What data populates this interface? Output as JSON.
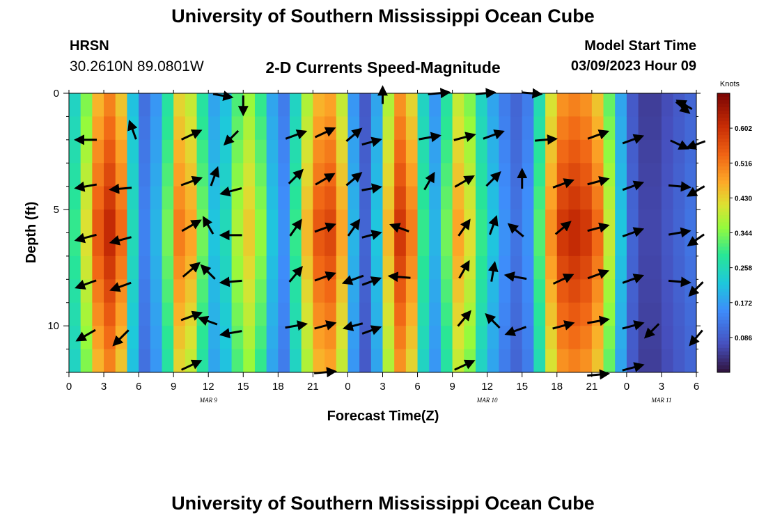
{
  "header": {
    "title": "University of Southern Mississippi Ocean Cube",
    "station": "HRSN",
    "coordinates": "30.2610N  89.0801W",
    "product": "2-D Currents Speed-Magnitude",
    "model_start_label": "Model Start Time",
    "model_start_value": "03/09/2023 Hour 09"
  },
  "footer": {
    "title": "University of Southern Mississippi Ocean Cube"
  },
  "chart_data": {
    "type": "heatmap",
    "title": "2-D Currents Speed-Magnitude",
    "xlabel": "Forecast Time(Z)",
    "ylabel": "Depth (ft)",
    "x_range_hours": [
      0,
      54
    ],
    "y_range_ft": [
      0,
      12
    ],
    "x_tick_labels": [
      "0",
      "3",
      "6",
      "9",
      "12",
      "15",
      "18",
      "21",
      "0",
      "3",
      "6",
      "9",
      "12",
      "15",
      "18",
      "21",
      "0",
      "3",
      "6"
    ],
    "y_tick_labels": [
      "0",
      "5",
      "10"
    ],
    "y_tick_values": [
      0,
      5,
      10
    ],
    "date_labels": [
      {
        "label": "MAR 9",
        "hour": 12
      },
      {
        "label": "MAR 10",
        "hour": 36
      },
      {
        "label": "MAR 11",
        "hour": 51
      }
    ],
    "colorbar": {
      "label": "Knots",
      "range": [
        0,
        0.688
      ],
      "ticks": [
        "0.602",
        "0.516",
        "0.430",
        "0.344",
        "0.258",
        "0.172",
        "0.086"
      ],
      "tick_values": [
        0.602,
        0.516,
        0.43,
        0.344,
        0.258,
        0.172,
        0.086
      ]
    },
    "speed_profile_by_hour": [
      {
        "hour": 0,
        "speed": 0.3
      },
      {
        "hour": 1,
        "speed": 0.42
      },
      {
        "hour": 2,
        "speed": 0.56
      },
      {
        "hour": 3,
        "speed": 0.62
      },
      {
        "hour": 4,
        "speed": 0.54
      },
      {
        "hour": 5,
        "speed": 0.26
      },
      {
        "hour": 6,
        "speed": 0.14
      },
      {
        "hour": 7,
        "speed": 0.2
      },
      {
        "hour": 8,
        "speed": 0.34
      },
      {
        "hour": 9,
        "speed": 0.52
      },
      {
        "hour": 10,
        "speed": 0.48
      },
      {
        "hour": 11,
        "speed": 0.34
      },
      {
        "hour": 12,
        "speed": 0.22
      },
      {
        "hour": 13,
        "speed": 0.26
      },
      {
        "hour": 14,
        "speed": 0.38
      },
      {
        "hour": 15,
        "speed": 0.44
      },
      {
        "hour": 16,
        "speed": 0.36
      },
      {
        "hour": 17,
        "speed": 0.22
      },
      {
        "hour": 18,
        "speed": 0.16
      },
      {
        "hour": 19,
        "speed": 0.3
      },
      {
        "hour": 20,
        "speed": 0.46
      },
      {
        "hour": 21,
        "speed": 0.56
      },
      {
        "hour": 22,
        "speed": 0.58
      },
      {
        "hour": 23,
        "speed": 0.48
      },
      {
        "hour": 24,
        "speed": 0.2
      },
      {
        "hour": 25,
        "speed": 0.1
      },
      {
        "hour": 26,
        "speed": 0.22
      },
      {
        "hour": 27,
        "speed": 0.46
      },
      {
        "hour": 28,
        "speed": 0.6
      },
      {
        "hour": 29,
        "speed": 0.52
      },
      {
        "hour": 30,
        "speed": 0.3
      },
      {
        "hour": 31,
        "speed": 0.2
      },
      {
        "hour": 32,
        "speed": 0.34
      },
      {
        "hour": 33,
        "speed": 0.48
      },
      {
        "hour": 34,
        "speed": 0.42
      },
      {
        "hour": 35,
        "speed": 0.3
      },
      {
        "hour": 36,
        "speed": 0.22
      },
      {
        "hour": 37,
        "speed": 0.16
      },
      {
        "hour": 38,
        "speed": 0.12
      },
      {
        "hour": 39,
        "speed": 0.16
      },
      {
        "hour": 40,
        "speed": 0.32
      },
      {
        "hour": 41,
        "speed": 0.5
      },
      {
        "hour": 42,
        "speed": 0.6
      },
      {
        "hour": 43,
        "speed": 0.62
      },
      {
        "hour": 44,
        "speed": 0.6
      },
      {
        "hour": 45,
        "speed": 0.54
      },
      {
        "hour": 46,
        "speed": 0.4
      },
      {
        "hour": 47,
        "speed": 0.22
      },
      {
        "hour": 48,
        "speed": 0.1
      },
      {
        "hour": 49,
        "speed": 0.06
      },
      {
        "hour": 50,
        "speed": 0.06
      },
      {
        "hour": 51,
        "speed": 0.08
      },
      {
        "hour": 52,
        "speed": 0.1
      },
      {
        "hour": 53,
        "speed": 0.12
      },
      {
        "hour": 54,
        "speed": 0.14
      }
    ],
    "vectors": [
      {
        "hour": 1.5,
        "depth": 2.0,
        "angle_deg": 180,
        "length": 1.0
      },
      {
        "hour": 1.5,
        "depth": 4.0,
        "angle_deg": 190,
        "length": 1.0
      },
      {
        "hour": 1.5,
        "depth": 6.2,
        "angle_deg": 195,
        "length": 1.0
      },
      {
        "hour": 1.5,
        "depth": 8.2,
        "angle_deg": 200,
        "length": 1.0
      },
      {
        "hour": 1.5,
        "depth": 10.4,
        "angle_deg": 210,
        "length": 1.0
      },
      {
        "hour": 4.5,
        "depth": 4.1,
        "angle_deg": 185,
        "length": 1.0
      },
      {
        "hour": 4.5,
        "depth": 6.3,
        "angle_deg": 195,
        "length": 1.0
      },
      {
        "hour": 4.5,
        "depth": 8.3,
        "angle_deg": 200,
        "length": 1.0
      },
      {
        "hour": 4.5,
        "depth": 10.5,
        "angle_deg": 225,
        "length": 1.0
      },
      {
        "hour": 5.5,
        "depth": 1.6,
        "angle_deg": 110,
        "length": 0.9
      },
      {
        "hour": 10.5,
        "depth": 1.8,
        "angle_deg": 25,
        "length": 1.0
      },
      {
        "hour": 10.5,
        "depth": 3.8,
        "angle_deg": 20,
        "length": 1.0
      },
      {
        "hour": 10.5,
        "depth": 5.7,
        "angle_deg": 30,
        "length": 1.0
      },
      {
        "hour": 10.5,
        "depth": 7.6,
        "angle_deg": 40,
        "length": 1.0
      },
      {
        "hour": 10.5,
        "depth": 9.6,
        "angle_deg": 20,
        "length": 1.0
      },
      {
        "hour": 10.5,
        "depth": 11.7,
        "angle_deg": 25,
        "length": 1.0
      },
      {
        "hour": 12.0,
        "depth": 5.7,
        "angle_deg": 120,
        "length": 0.9
      },
      {
        "hour": 12.0,
        "depth": 7.7,
        "angle_deg": 135,
        "length": 0.9
      },
      {
        "hour": 12.0,
        "depth": 9.8,
        "angle_deg": 160,
        "length": 0.9
      },
      {
        "hour": 12.5,
        "depth": 3.6,
        "angle_deg": 70,
        "length": 0.9
      },
      {
        "hour": 13.2,
        "depth": 0.1,
        "angle_deg": -10,
        "length": 0.9
      },
      {
        "hour": 14.0,
        "depth": 1.9,
        "angle_deg": 225,
        "length": 0.9
      },
      {
        "hour": 14.0,
        "depth": 4.2,
        "angle_deg": 195,
        "length": 1.0
      },
      {
        "hour": 14.0,
        "depth": 6.1,
        "angle_deg": 180,
        "length": 1.0
      },
      {
        "hour": 14.0,
        "depth": 8.1,
        "angle_deg": 185,
        "length": 1.0
      },
      {
        "hour": 14.0,
        "depth": 10.3,
        "angle_deg": 190,
        "length": 1.0
      },
      {
        "hour": 15.0,
        "depth": 0.5,
        "angle_deg": 270,
        "length": 0.9
      },
      {
        "hour": 19.5,
        "depth": 1.8,
        "angle_deg": 20,
        "length": 1.0
      },
      {
        "hour": 19.5,
        "depth": 3.6,
        "angle_deg": 45,
        "length": 0.9
      },
      {
        "hour": 19.5,
        "depth": 5.8,
        "angle_deg": 55,
        "length": 0.9
      },
      {
        "hour": 19.5,
        "depth": 7.8,
        "angle_deg": 50,
        "length": 0.9
      },
      {
        "hour": 19.5,
        "depth": 10.0,
        "angle_deg": 10,
        "length": 1.0
      },
      {
        "hour": 22.0,
        "depth": 1.7,
        "angle_deg": 25,
        "length": 1.0
      },
      {
        "hour": 22.0,
        "depth": 3.7,
        "angle_deg": 30,
        "length": 1.0
      },
      {
        "hour": 22.0,
        "depth": 5.8,
        "angle_deg": 20,
        "length": 1.0
      },
      {
        "hour": 22.0,
        "depth": 7.9,
        "angle_deg": 20,
        "length": 1.0
      },
      {
        "hour": 22.0,
        "depth": 10.0,
        "angle_deg": 15,
        "length": 1.0
      },
      {
        "hour": 22.0,
        "depth": 12.0,
        "angle_deg": 5,
        "length": 1.0
      },
      {
        "hour": 24.5,
        "depth": 1.8,
        "angle_deg": 40,
        "length": 0.9
      },
      {
        "hour": 24.5,
        "depth": 3.7,
        "angle_deg": 40,
        "length": 0.9
      },
      {
        "hour": 24.5,
        "depth": 5.8,
        "angle_deg": 55,
        "length": 0.9
      },
      {
        "hour": 24.5,
        "depth": 8.0,
        "angle_deg": 200,
        "length": 1.0
      },
      {
        "hour": 24.5,
        "depth": 10.0,
        "angle_deg": 195,
        "length": 0.9
      },
      {
        "hour": 26.0,
        "depth": 2.1,
        "angle_deg": 15,
        "length": 0.9
      },
      {
        "hour": 26.0,
        "depth": 4.1,
        "angle_deg": 10,
        "length": 0.9
      },
      {
        "hour": 26.0,
        "depth": 6.1,
        "angle_deg": 15,
        "length": 0.9
      },
      {
        "hour": 26.0,
        "depth": 8.1,
        "angle_deg": 20,
        "length": 0.9
      },
      {
        "hour": 26.0,
        "depth": 10.2,
        "angle_deg": 20,
        "length": 0.9
      },
      {
        "hour": 27.0,
        "depth": 0.1,
        "angle_deg": 90,
        "length": 0.8
      },
      {
        "hour": 28.5,
        "depth": 5.8,
        "angle_deg": 160,
        "length": 0.9
      },
      {
        "hour": 28.5,
        "depth": 7.9,
        "angle_deg": 175,
        "length": 1.0
      },
      {
        "hour": 31.0,
        "depth": 1.9,
        "angle_deg": 10,
        "length": 1.0
      },
      {
        "hour": 31.0,
        "depth": 3.8,
        "angle_deg": 60,
        "length": 0.9
      },
      {
        "hour": 31.8,
        "depth": 0.0,
        "angle_deg": 5,
        "length": 1.0
      },
      {
        "hour": 34.0,
        "depth": 1.9,
        "angle_deg": 15,
        "length": 1.0
      },
      {
        "hour": 34.0,
        "depth": 3.8,
        "angle_deg": 30,
        "length": 1.0
      },
      {
        "hour": 34.0,
        "depth": 5.8,
        "angle_deg": 55,
        "length": 0.9
      },
      {
        "hour": 34.0,
        "depth": 7.6,
        "angle_deg": 60,
        "length": 0.9
      },
      {
        "hour": 34.0,
        "depth": 9.7,
        "angle_deg": 50,
        "length": 0.9
      },
      {
        "hour": 34.0,
        "depth": 11.7,
        "angle_deg": 25,
        "length": 1.0
      },
      {
        "hour": 35.8,
        "depth": 0.0,
        "angle_deg": 5,
        "length": 0.9
      },
      {
        "hour": 36.5,
        "depth": 1.8,
        "angle_deg": 20,
        "length": 1.0
      },
      {
        "hour": 36.5,
        "depth": 3.7,
        "angle_deg": 45,
        "length": 0.9
      },
      {
        "hour": 36.5,
        "depth": 5.7,
        "angle_deg": 70,
        "length": 0.9
      },
      {
        "hour": 36.5,
        "depth": 7.7,
        "angle_deg": 80,
        "length": 0.9
      },
      {
        "hour": 36.5,
        "depth": 9.8,
        "angle_deg": 135,
        "length": 0.9
      },
      {
        "hour": 38.5,
        "depth": 5.9,
        "angle_deg": 140,
        "length": 0.9
      },
      {
        "hour": 38.5,
        "depth": 7.9,
        "angle_deg": 170,
        "length": 1.0
      },
      {
        "hour": 38.5,
        "depth": 10.2,
        "angle_deg": 200,
        "length": 1.0
      },
      {
        "hour": 39.0,
        "depth": 3.7,
        "angle_deg": 90,
        "length": 0.9
      },
      {
        "hour": 39.8,
        "depth": 0.0,
        "angle_deg": -5,
        "length": 0.9
      },
      {
        "hour": 41.0,
        "depth": 2.0,
        "angle_deg": 5,
        "length": 1.0
      },
      {
        "hour": 42.5,
        "depth": 3.9,
        "angle_deg": 20,
        "length": 1.0
      },
      {
        "hour": 42.5,
        "depth": 5.8,
        "angle_deg": 40,
        "length": 0.9
      },
      {
        "hour": 42.5,
        "depth": 8.0,
        "angle_deg": 25,
        "length": 1.0
      },
      {
        "hour": 42.5,
        "depth": 10.0,
        "angle_deg": 15,
        "length": 1.0
      },
      {
        "hour": 45.5,
        "depth": 1.8,
        "angle_deg": 20,
        "length": 1.0
      },
      {
        "hour": 45.5,
        "depth": 3.8,
        "angle_deg": 15,
        "length": 1.0
      },
      {
        "hour": 45.5,
        "depth": 5.8,
        "angle_deg": 15,
        "length": 1.0
      },
      {
        "hour": 45.5,
        "depth": 7.8,
        "angle_deg": 20,
        "length": 1.0
      },
      {
        "hour": 45.5,
        "depth": 9.8,
        "angle_deg": 10,
        "length": 1.0
      },
      {
        "hour": 45.5,
        "depth": 12.1,
        "angle_deg": 5,
        "length": 1.0
      },
      {
        "hour": 48.5,
        "depth": 2.0,
        "angle_deg": 20,
        "length": 1.0
      },
      {
        "hour": 48.5,
        "depth": 4.0,
        "angle_deg": 20,
        "length": 1.0
      },
      {
        "hour": 48.5,
        "depth": 6.0,
        "angle_deg": 20,
        "length": 1.0
      },
      {
        "hour": 48.5,
        "depth": 8.0,
        "angle_deg": 20,
        "length": 1.0
      },
      {
        "hour": 48.5,
        "depth": 10.0,
        "angle_deg": 15,
        "length": 1.0
      },
      {
        "hour": 48.5,
        "depth": 11.8,
        "angle_deg": 15,
        "length": 1.0
      },
      {
        "hour": 50.2,
        "depth": 10.2,
        "angle_deg": 225,
        "length": 0.9
      },
      {
        "hour": 52.5,
        "depth": 4.0,
        "angle_deg": -5,
        "length": 1.0
      },
      {
        "hour": 52.5,
        "depth": 6.0,
        "angle_deg": 10,
        "length": 1.0
      },
      {
        "hour": 52.5,
        "depth": 8.1,
        "angle_deg": -5,
        "length": 1.0
      },
      {
        "hour": 52.5,
        "depth": 2.2,
        "angle_deg": -25,
        "length": 0.9
      },
      {
        "hour": 52.8,
        "depth": 0.6,
        "angle_deg": -40,
        "length": 0.8
      },
      {
        "hour": 53.0,
        "depth": 0.5,
        "angle_deg": 150,
        "length": 0.8
      },
      {
        "hour": 54.0,
        "depth": 2.2,
        "angle_deg": 200,
        "length": 0.9
      },
      {
        "hour": 54.0,
        "depth": 4.2,
        "angle_deg": 210,
        "length": 0.9
      },
      {
        "hour": 54.0,
        "depth": 6.3,
        "angle_deg": 215,
        "length": 0.9
      },
      {
        "hour": 54.0,
        "depth": 8.4,
        "angle_deg": 225,
        "length": 0.9
      },
      {
        "hour": 54.0,
        "depth": 10.5,
        "angle_deg": 230,
        "length": 0.9
      }
    ]
  }
}
